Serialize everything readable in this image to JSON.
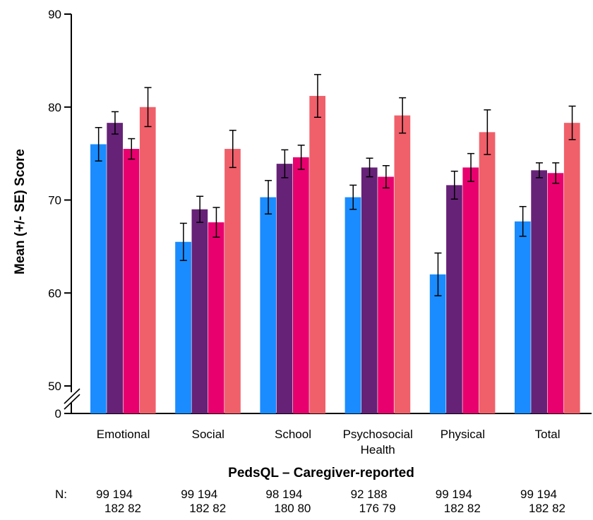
{
  "chart_data": {
    "type": "bar",
    "title": "",
    "xlabel": "PedsQL – Caregiver-reported",
    "ylabel": "Mean (+/- SE) Score",
    "ylim": [
      50,
      90
    ],
    "axis_break": true,
    "yticks": [
      "90",
      "80",
      "70",
      "60",
      "50",
      "0"
    ],
    "categories": [
      {
        "lines": [
          "Emotional"
        ]
      },
      {
        "lines": [
          "Social"
        ]
      },
      {
        "lines": [
          "School"
        ]
      },
      {
        "lines": [
          "Psychosocial",
          "Health"
        ]
      },
      {
        "lines": [
          "Physical"
        ]
      },
      {
        "lines": [
          "Total"
        ]
      }
    ],
    "series": [
      {
        "color": "#1a8cff",
        "values": [
          76.0,
          65.5,
          70.3,
          70.3,
          62.0,
          67.7
        ],
        "se": [
          1.8,
          2.0,
          1.8,
          1.3,
          2.3,
          1.6
        ]
      },
      {
        "color": "#662277",
        "values": [
          78.3,
          69.0,
          73.9,
          73.5,
          71.6,
          73.2
        ],
        "se": [
          1.2,
          1.4,
          1.5,
          1.0,
          1.5,
          0.8
        ]
      },
      {
        "color": "#e8006e",
        "values": [
          75.5,
          67.6,
          74.6,
          72.5,
          73.5,
          72.9
        ],
        "se": [
          1.1,
          1.6,
          1.3,
          1.2,
          1.5,
          1.1
        ]
      },
      {
        "color": "#f0606a",
        "values": [
          80.0,
          75.5,
          81.2,
          79.1,
          77.3,
          78.3
        ],
        "se": [
          2.1,
          2.0,
          2.3,
          1.9,
          2.4,
          1.8
        ]
      }
    ],
    "n_prefix": "N:",
    "n_values": [
      {
        "top": "99  194",
        "bottom": "182  82"
      },
      {
        "top": "99  194",
        "bottom": "182  82"
      },
      {
        "top": "98  194",
        "bottom": "180  80"
      },
      {
        "top": "92  188",
        "bottom": "176  79"
      },
      {
        "top": "99  194",
        "bottom": "182  82"
      },
      {
        "top": "99  194",
        "bottom": "182  82"
      }
    ],
    "legend": "none",
    "grid": false
  }
}
